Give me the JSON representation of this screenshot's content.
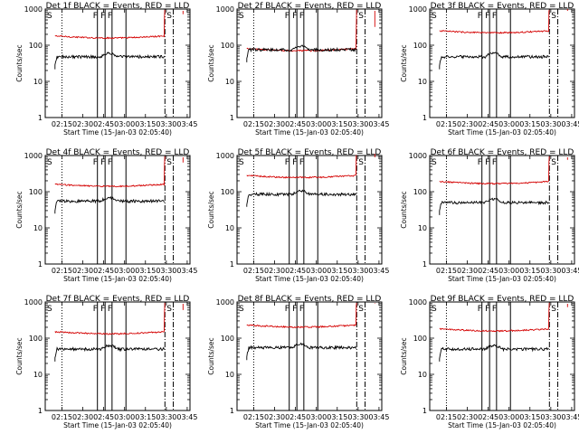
{
  "chart_data": {
    "type": "line",
    "layout": "3x3 grid",
    "common": {
      "ylabel": "Counts/sec",
      "xlabel": "Start Time (15-Jan-03 02:05:40)",
      "yscale": "log",
      "ylim": [
        1,
        1000
      ],
      "xlim_minutes": [
        -2,
        102
      ],
      "ytick_labels": [
        "1",
        "10",
        "100",
        "1000"
      ],
      "xticks": [
        {
          "minute": 10,
          "label": "02:15"
        },
        {
          "minute": 25,
          "label": "02:30"
        },
        {
          "minute": 40,
          "label": "02:45"
        },
        {
          "minute": 55,
          "label": "03:00"
        },
        {
          "minute": 70,
          "label": "03:15"
        },
        {
          "minute": 85,
          "label": "03:30"
        },
        {
          "minute": 100,
          "label": "03:45"
        }
      ],
      "series_colors": {
        "events": "#000000",
        "lld": "#d40000"
      },
      "legend": "in title: BLACK = Events, RED = LLD",
      "annotations": {
        "dotted_line_minute": 10,
        "flag_lines_F": [
          35.5,
          41,
          46
        ],
        "flag_lines_plain": [
          56
        ],
        "saa_line_S_minute": 84,
        "dash_dot_line_minute": 90,
        "letter_S": "S",
        "letter_F": "F"
      },
      "data_start_minute": 5,
      "data_end_minute": 83.5
    },
    "panels": [
      {
        "title": "Det 1f BLACK = Events, RED = LLD",
        "lld_level": 180,
        "events_level": 48
      },
      {
        "title": "Det 2f BLACK = Events, RED = LLD",
        "lld_level": 80,
        "events_level": 75
      },
      {
        "title": "Det 3f BLACK = Events, RED = LLD",
        "lld_level": 250,
        "events_level": 48
      },
      {
        "title": "Det 4f BLACK = Events, RED = LLD",
        "lld_level": 160,
        "events_level": 55
      },
      {
        "title": "Det 5f BLACK = Events, RED = LLD",
        "lld_level": 280,
        "events_level": 85
      },
      {
        "title": "Det 6f BLACK = Events, RED = LLD",
        "lld_level": 190,
        "events_level": 50
      },
      {
        "title": "Det 7f BLACK = Events, RED = LLD",
        "lld_level": 150,
        "events_level": 50
      },
      {
        "title": "Det 8f BLACK = Events, RED = LLD",
        "lld_level": 230,
        "events_level": 55
      },
      {
        "title": "Det 9f BLACK = Events, RED = LLD",
        "lld_level": 180,
        "events_level": 50
      }
    ]
  }
}
